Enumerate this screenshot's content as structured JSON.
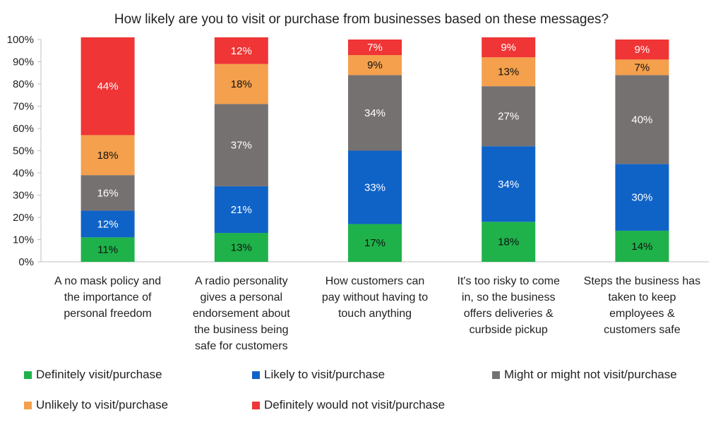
{
  "chart_data": {
    "type": "bar",
    "stacked": true,
    "percent_stacked": true,
    "title": "How likely are you to visit or purchase from businesses based on these  messages?",
    "ylim": [
      0,
      100
    ],
    "yticks": [
      "0%",
      "10%",
      "20%",
      "30%",
      "40%",
      "50%",
      "60%",
      "70%",
      "80%",
      "90%",
      "100%"
    ],
    "categories": [
      [
        "A no mask policy and",
        "the importance of",
        "personal freedom"
      ],
      [
        "A radio personality",
        "gives a personal",
        "endorsement about",
        "the business being",
        "safe for customers"
      ],
      [
        "How customers can",
        "pay without having to",
        "touch anything"
      ],
      [
        "It's too risky to come",
        "in, so the business",
        "offers deliveries &",
        "curbside pickup"
      ],
      [
        "Steps the business has",
        "taken to keep",
        "employees &",
        "customers safe"
      ]
    ],
    "series": [
      {
        "name": "Definitely visit/purchase",
        "color": "#1fb24a",
        "label_color": "#111111",
        "values": [
          11,
          13,
          17,
          18,
          14
        ],
        "labels": [
          "11%",
          "13%",
          "17%",
          "18%",
          "14%"
        ]
      },
      {
        "name": "Likely to visit/purchase",
        "color": "#0f63c7",
        "label_color": "#ffffff",
        "values": [
          12,
          21,
          33,
          34,
          30
        ],
        "labels": [
          "12%",
          "21%",
          "33%",
          "34%",
          "30%"
        ]
      },
      {
        "name": "Might or might not visit/purchase",
        "color": "#767171",
        "label_color": "#ffffff",
        "values": [
          16,
          37,
          34,
          27,
          40
        ],
        "labels": [
          "16%",
          "37%",
          "34%",
          "27%",
          "40%"
        ]
      },
      {
        "name": "Unlikely to visit/purchase",
        "color": "#f4a04c",
        "label_color": "#111111",
        "values": [
          18,
          18,
          9,
          13,
          7
        ],
        "labels": [
          "18%",
          "18%",
          "9%",
          "13%",
          "7%"
        ]
      },
      {
        "name": "Definitely would not visit/purchase",
        "color": "#ef3535",
        "label_color": "#ffffff",
        "values": [
          44,
          12,
          7,
          9,
          9
        ],
        "labels": [
          "44%",
          "12%",
          "7%",
          "9%",
          "9%"
        ]
      }
    ],
    "legend_position": "bottom",
    "grid": false
  }
}
